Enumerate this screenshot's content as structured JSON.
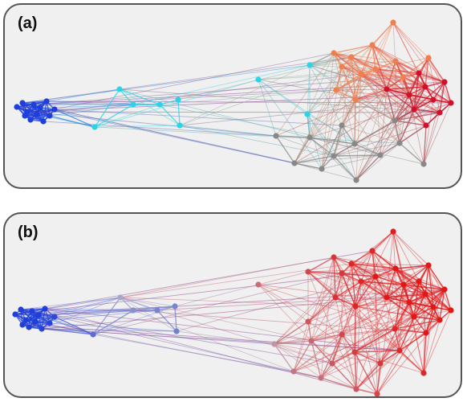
{
  "panels": [
    {
      "label": "(a)",
      "coloring": "clusters",
      "cluster_colors": {
        "blue": "#1f3fdb",
        "cyan": "#2ad4e8",
        "gray": "#888888",
        "orange": "#ef7f4f",
        "red": "#d0112b"
      }
    },
    {
      "label": "(b)",
      "coloring": "gradient",
      "gradient_colors": [
        "#1f3fdb",
        "#b4b4c6",
        "#e01818"
      ]
    }
  ]
}
